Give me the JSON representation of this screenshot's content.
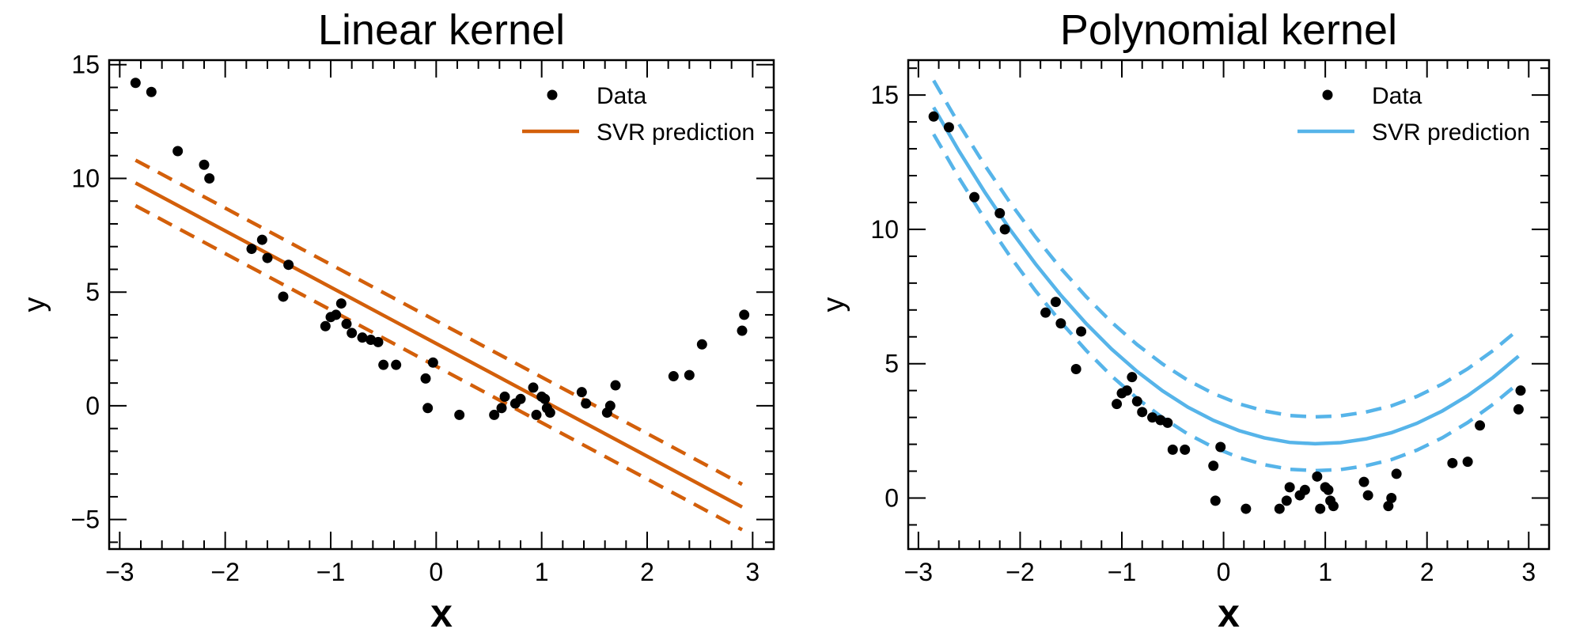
{
  "chart_data": [
    {
      "type": "scatter",
      "title": "Linear kernel",
      "xlabel": "x",
      "ylabel": "y",
      "xlim": [
        -3.1,
        3.2
      ],
      "ylim": [
        -6.3,
        15.2
      ],
      "xticks": [
        -3,
        -2,
        -1,
        0,
        1,
        2,
        3
      ],
      "xtick_labels": [
        "−3",
        "−2",
        "−1",
        "0",
        "1",
        "2",
        "3"
      ],
      "yticks": [
        -5,
        0,
        5,
        10,
        15
      ],
      "ytick_labels": [
        "−5",
        "0",
        "5",
        "10",
        "15"
      ],
      "grid": false,
      "legend": {
        "placement": "top-right",
        "entries": [
          "Data",
          "SVR prediction"
        ]
      },
      "color": "#d35f0a",
      "series": [
        {
          "name": "Data",
          "kind": "points",
          "x": [
            -2.85,
            -2.7,
            -2.45,
            -2.2,
            -2.15,
            -1.75,
            -1.65,
            -1.6,
            -1.45,
            -1.4,
            -1.05,
            -1.0,
            -0.95,
            -0.9,
            -0.85,
            -0.8,
            -0.7,
            -0.62,
            -0.55,
            -0.5,
            -0.38,
            -0.1,
            -0.08,
            -0.03,
            0.22,
            0.55,
            0.62,
            0.65,
            0.75,
            0.8,
            0.92,
            0.95,
            1.0,
            1.03,
            1.05,
            1.08,
            1.38,
            1.42,
            1.62,
            1.65,
            1.7,
            2.25,
            2.4,
            2.52,
            2.9,
            2.92
          ],
          "y": [
            14.2,
            13.8,
            11.2,
            10.6,
            10.0,
            6.9,
            7.3,
            6.5,
            4.8,
            6.2,
            3.5,
            3.9,
            4.0,
            4.5,
            3.6,
            3.2,
            3.0,
            2.9,
            2.8,
            1.8,
            1.8,
            1.2,
            -0.1,
            1.9,
            -0.4,
            -0.4,
            -0.1,
            0.4,
            0.1,
            0.3,
            0.8,
            -0.4,
            0.4,
            0.3,
            -0.1,
            -0.3,
            0.6,
            0.1,
            -0.3,
            0.0,
            0.9,
            1.3,
            1.35,
            2.7,
            3.3,
            4.0
          ]
        },
        {
          "name": "SVR prediction",
          "kind": "line",
          "style": "solid",
          "x": [
            -2.85,
            2.9
          ],
          "y": [
            9.8,
            -4.45
          ]
        },
        {
          "name": "",
          "kind": "line",
          "style": "dashed",
          "x": [
            -2.85,
            2.9
          ],
          "y": [
            10.8,
            -3.45
          ]
        },
        {
          "name": "",
          "kind": "line",
          "style": "dashed",
          "x": [
            -2.85,
            2.9
          ],
          "y": [
            8.8,
            -5.45
          ]
        }
      ]
    },
    {
      "type": "scatter",
      "title": "Polynomial kernel",
      "xlabel": "x",
      "ylabel": "y",
      "xlim": [
        -3.1,
        3.2
      ],
      "ylim": [
        -1.9,
        16.3
      ],
      "xticks": [
        -3,
        -2,
        -1,
        0,
        1,
        2,
        3
      ],
      "xtick_labels": [
        "−3",
        "−2",
        "−1",
        "0",
        "1",
        "2",
        "3"
      ],
      "yticks": [
        0,
        5,
        10,
        15
      ],
      "ytick_labels": [
        "0",
        "5",
        "10",
        "15"
      ],
      "grid": false,
      "legend": {
        "placement": "top-right",
        "entries": [
          "Data",
          "SVR prediction"
        ]
      },
      "color": "#56b4e9",
      "series": [
        {
          "name": "Data",
          "kind": "points",
          "x": [
            -2.85,
            -2.7,
            -2.45,
            -2.2,
            -2.15,
            -1.75,
            -1.65,
            -1.6,
            -1.45,
            -1.4,
            -1.05,
            -1.0,
            -0.95,
            -0.9,
            -0.85,
            -0.8,
            -0.7,
            -0.62,
            -0.55,
            -0.5,
            -0.38,
            -0.1,
            -0.08,
            -0.03,
            0.22,
            0.55,
            0.62,
            0.65,
            0.75,
            0.8,
            0.92,
            0.95,
            1.0,
            1.03,
            1.05,
            1.08,
            1.38,
            1.42,
            1.62,
            1.65,
            1.7,
            2.25,
            2.4,
            2.52,
            2.9,
            2.92
          ],
          "y": [
            14.2,
            13.8,
            11.2,
            10.6,
            10.0,
            6.9,
            7.3,
            6.5,
            4.8,
            6.2,
            3.5,
            3.9,
            4.0,
            4.5,
            3.6,
            3.2,
            3.0,
            2.9,
            2.8,
            1.8,
            1.8,
            1.2,
            -0.1,
            1.9,
            -0.4,
            -0.4,
            -0.1,
            0.4,
            0.1,
            0.3,
            0.8,
            -0.4,
            0.4,
            0.3,
            -0.1,
            -0.3,
            0.6,
            0.1,
            -0.3,
            0.0,
            0.9,
            1.3,
            1.35,
            2.7,
            3.3,
            4.0
          ]
        },
        {
          "name": "SVR prediction",
          "kind": "line",
          "style": "solid",
          "x": [
            -2.85,
            -2.6,
            -2.35,
            -2.1,
            -1.85,
            -1.6,
            -1.35,
            -1.1,
            -0.85,
            -0.6,
            -0.35,
            -0.1,
            0.15,
            0.4,
            0.65,
            0.9,
            1.15,
            1.4,
            1.65,
            1.9,
            2.15,
            2.4,
            2.65,
            2.9
          ],
          "y": [
            14.54,
            12.91,
            11.4,
            10.0,
            8.72,
            7.55,
            6.49,
            5.54,
            4.71,
            3.99,
            3.38,
            2.89,
            2.51,
            2.24,
            2.07,
            2.02,
            2.06,
            2.2,
            2.43,
            2.78,
            3.24,
            3.81,
            4.49,
            5.28
          ]
        },
        {
          "name": "",
          "kind": "line",
          "style": "dashed",
          "x": [
            -2.85,
            -2.6,
            -2.35,
            -2.1,
            -1.85,
            -1.6,
            -1.35,
            -1.1,
            -0.85,
            -0.6,
            -0.35,
            -0.1,
            0.15,
            0.4,
            0.65,
            0.9,
            1.15,
            1.4,
            1.65,
            1.9,
            2.15,
            2.4,
            2.65,
            2.9
          ],
          "y": [
            15.54,
            13.91,
            12.4,
            11.0,
            9.72,
            8.55,
            7.49,
            6.54,
            5.71,
            4.99,
            4.38,
            3.89,
            3.51,
            3.24,
            3.07,
            3.02,
            3.06,
            3.2,
            3.43,
            3.78,
            4.24,
            4.81,
            5.49,
            6.28
          ]
        },
        {
          "name": "",
          "kind": "line",
          "style": "dashed",
          "x": [
            -2.85,
            -2.6,
            -2.35,
            -2.1,
            -1.85,
            -1.6,
            -1.35,
            -1.1,
            -0.85,
            -0.6,
            -0.35,
            -0.1,
            0.15,
            0.4,
            0.65,
            0.9,
            1.15,
            1.4,
            1.65,
            1.9,
            2.15,
            2.4,
            2.65,
            2.9
          ],
          "y": [
            13.54,
            11.91,
            10.4,
            9.0,
            7.72,
            6.55,
            5.49,
            4.54,
            3.71,
            2.99,
            2.38,
            1.89,
            1.51,
            1.24,
            1.07,
            1.02,
            1.06,
            1.2,
            1.43,
            1.78,
            2.24,
            2.81,
            3.49,
            4.28
          ]
        }
      ]
    }
  ]
}
